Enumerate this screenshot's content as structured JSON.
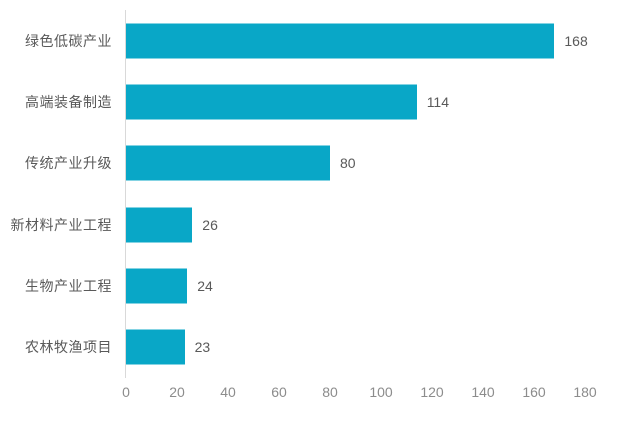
{
  "chart_data": {
    "type": "bar",
    "orientation": "horizontal",
    "title": "",
    "xlabel": "",
    "ylabel": "",
    "categories": [
      "绿色低碳产业",
      "高端装备制造",
      "传统产业升级",
      "新材料产业工程",
      "生物产业工程",
      "农林牧渔项目"
    ],
    "values": [
      168,
      114,
      80,
      26,
      24,
      23
    ],
    "xlim": [
      0,
      180
    ],
    "x_ticks": [
      "0",
      "20",
      "40",
      "60",
      "80",
      "100",
      "120",
      "140",
      "160",
      "180"
    ],
    "grid": false,
    "legend": false,
    "data_labels": true,
    "colors": {
      "bar": "#09a7c7",
      "category_label": "#595959",
      "value_label": "#595959",
      "tick_label": "#8c8c8c",
      "axis_line": "#d9d9d9",
      "background": "#ffffff"
    }
  }
}
